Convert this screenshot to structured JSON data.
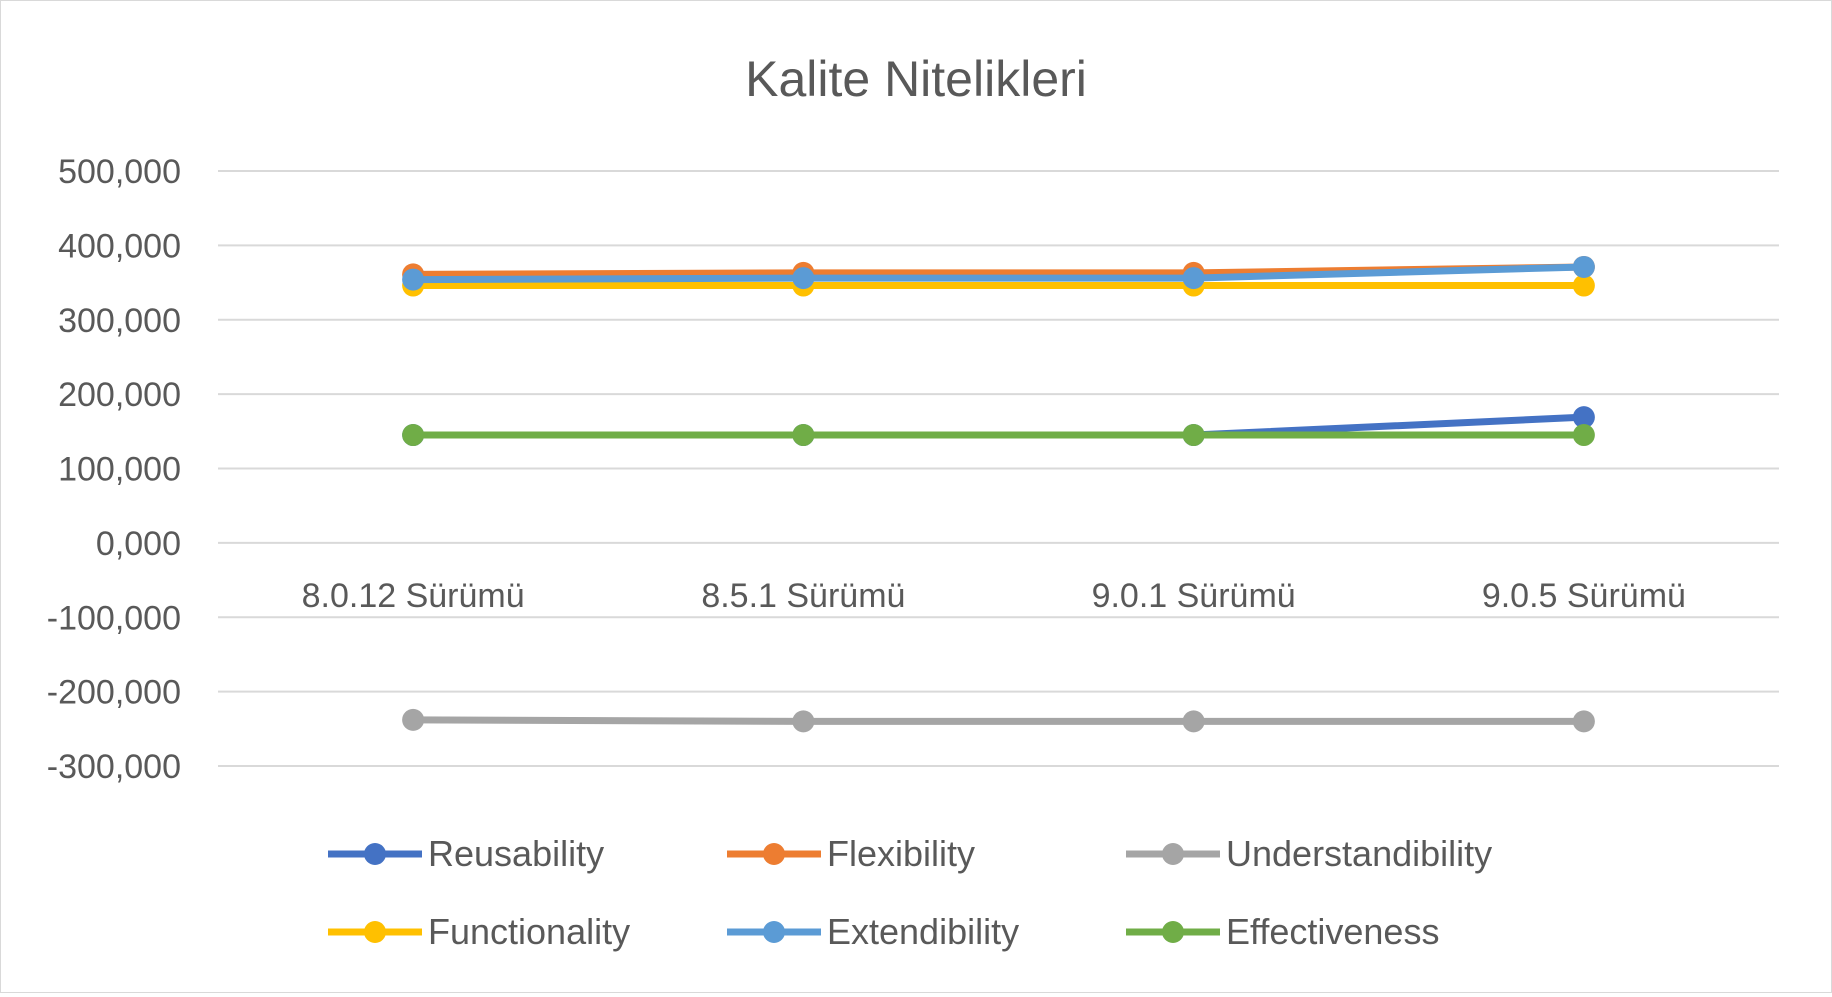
{
  "chart_data": {
    "type": "line",
    "title": "Kalite Nitelikleri",
    "xlabel": "",
    "ylabel": "",
    "categories": [
      "8.0.12 Sürümü",
      "8.5.1 Sürümü",
      "9.0.1 Sürümü",
      "9.0.5 Sürümü"
    ],
    "ylim": [
      -300,
      500
    ],
    "yticks": [
      500,
      400,
      300,
      200,
      100,
      0,
      -100,
      -200,
      -300
    ],
    "ytick_labels": [
      "500,000",
      "400,000",
      "300,000",
      "200,000",
      "100,000",
      "0,000",
      "-100,000",
      "-200,000",
      "-300,000"
    ],
    "grid": true,
    "legend_position": "bottom",
    "series": [
      {
        "name": "Reusability",
        "color": "#4472C4",
        "values": [
          145,
          145,
          145,
          169
        ]
      },
      {
        "name": "Flexibility",
        "color": "#ED7D31",
        "values": [
          361,
          363,
          363,
          371
        ]
      },
      {
        "name": "Understandibility",
        "color": "#A5A5A5",
        "values": [
          -238,
          -240,
          -240,
          -240
        ]
      },
      {
        "name": "Functionality",
        "color": "#FFC000",
        "values": [
          346,
          346,
          346,
          346
        ]
      },
      {
        "name": "Extendibility",
        "color": "#5B9BD5",
        "values": [
          354,
          356,
          356,
          371
        ]
      },
      {
        "name": "Effectiveness",
        "color": "#70AD47",
        "values": [
          145,
          145,
          145,
          145
        ]
      }
    ]
  }
}
